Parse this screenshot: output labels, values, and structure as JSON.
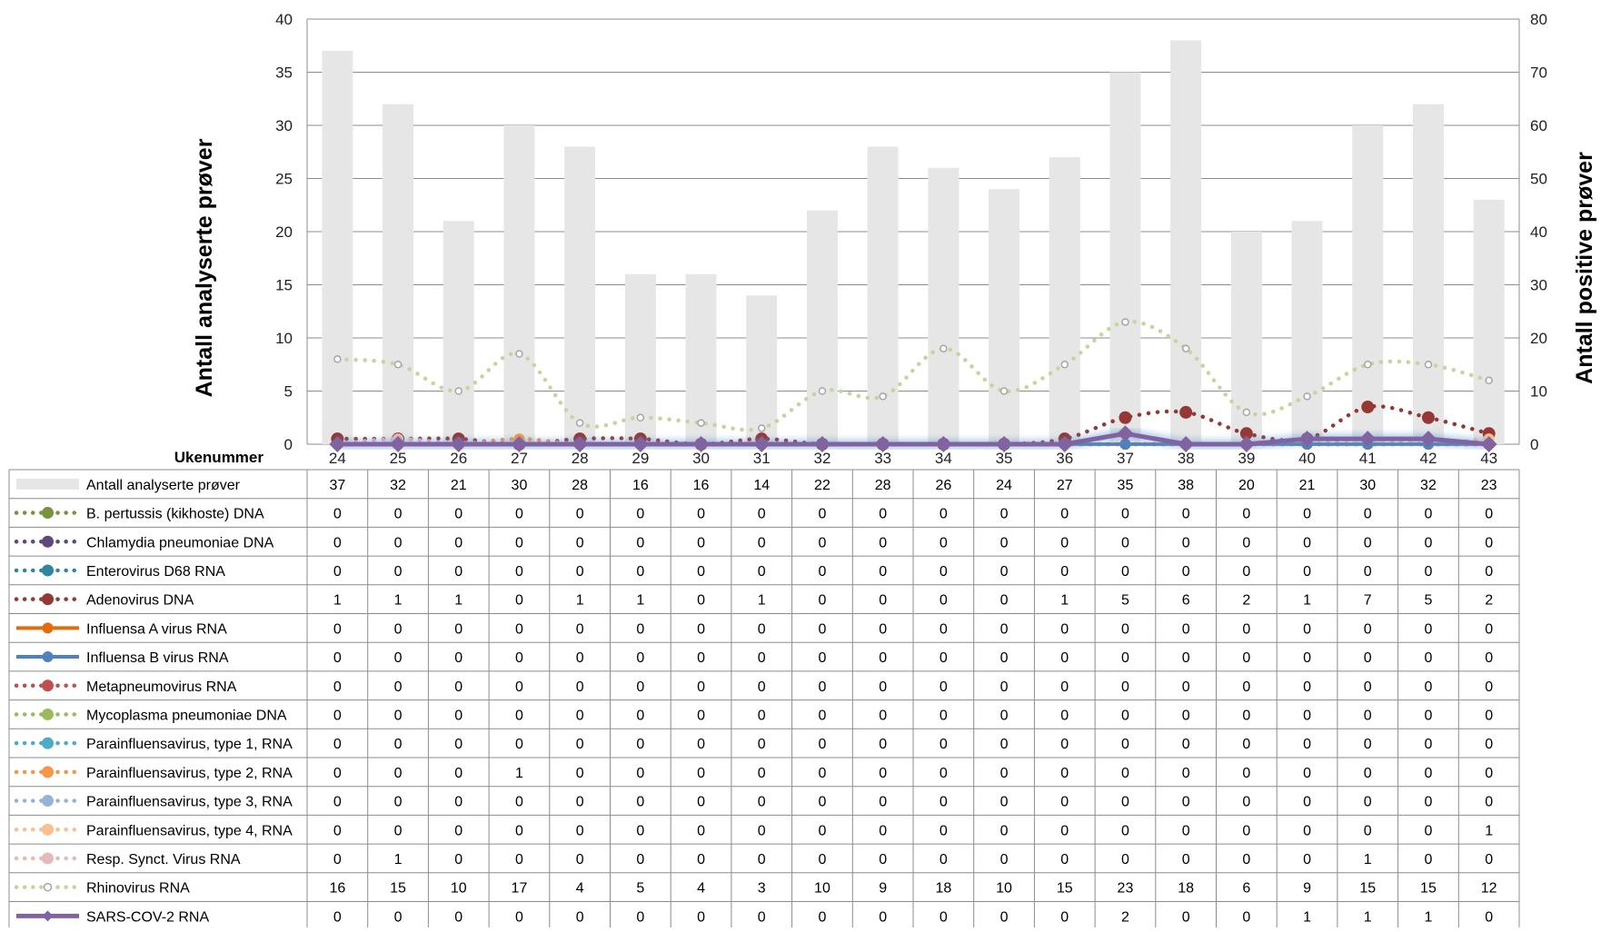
{
  "chart_data": {
    "type": "bar",
    "xlabel": "Ukenummer",
    "ylabel_left": "Antall analyserte prøver",
    "ylabel_right": "Antall positive prøver",
    "ylim_left": [
      0,
      40
    ],
    "ylim_right": [
      0,
      80
    ],
    "yticks_left": [
      0,
      5,
      10,
      15,
      20,
      25,
      30,
      35,
      40
    ],
    "yticks_right": [
      0,
      10,
      20,
      30,
      40,
      50,
      60,
      70,
      80
    ],
    "grid": true,
    "legend_placement": "data-table",
    "categories": [
      "24",
      "25",
      "26",
      "27",
      "28",
      "29",
      "30",
      "31",
      "32",
      "33",
      "34",
      "35",
      "36",
      "37",
      "38",
      "39",
      "40",
      "41",
      "42",
      "43"
    ],
    "series": [
      {
        "name": "Antall analyserte prøver",
        "kind": "bar",
        "axis": "left",
        "color": "#e6e6e6",
        "values": [
          37,
          32,
          21,
          30,
          28,
          16,
          16,
          14,
          22,
          28,
          26,
          24,
          27,
          35,
          38,
          20,
          21,
          30,
          32,
          23
        ]
      },
      {
        "name": "B. pertussis (kikhoste) DNA",
        "kind": "dotted",
        "axis": "right",
        "color": "#77933c",
        "values": [
          0,
          0,
          0,
          0,
          0,
          0,
          0,
          0,
          0,
          0,
          0,
          0,
          0,
          0,
          0,
          0,
          0,
          0,
          0,
          0
        ]
      },
      {
        "name": "Chlamydia pneumoniae DNA",
        "kind": "dotted",
        "axis": "right",
        "color": "#60497a",
        "values": [
          0,
          0,
          0,
          0,
          0,
          0,
          0,
          0,
          0,
          0,
          0,
          0,
          0,
          0,
          0,
          0,
          0,
          0,
          0,
          0
        ]
      },
      {
        "name": "Enterovirus D68 RNA",
        "kind": "dotted",
        "axis": "right",
        "color": "#31859c",
        "values": [
          0,
          0,
          0,
          0,
          0,
          0,
          0,
          0,
          0,
          0,
          0,
          0,
          0,
          0,
          0,
          0,
          0,
          0,
          0,
          0
        ]
      },
      {
        "name": "Adenovirus DNA",
        "kind": "dotted",
        "axis": "right",
        "color": "#953735",
        "values": [
          1,
          1,
          1,
          0,
          1,
          1,
          0,
          1,
          0,
          0,
          0,
          0,
          1,
          5,
          6,
          2,
          1,
          7,
          5,
          2
        ]
      },
      {
        "name": "Influensa A virus RNA",
        "kind": "solid",
        "axis": "right",
        "color": "#e46c0a",
        "values": [
          0,
          0,
          0,
          0,
          0,
          0,
          0,
          0,
          0,
          0,
          0,
          0,
          0,
          0,
          0,
          0,
          0,
          0,
          0,
          0
        ]
      },
      {
        "name": "Influensa B virus RNA",
        "kind": "solid",
        "axis": "right",
        "color": "#4f81bd",
        "values": [
          0,
          0,
          0,
          0,
          0,
          0,
          0,
          0,
          0,
          0,
          0,
          0,
          0,
          0,
          0,
          0,
          0,
          0,
          0,
          0
        ]
      },
      {
        "name": "Metapneumovirus RNA",
        "kind": "dotted",
        "axis": "right",
        "color": "#c0504d",
        "values": [
          0,
          0,
          0,
          0,
          0,
          0,
          0,
          0,
          0,
          0,
          0,
          0,
          0,
          0,
          0,
          0,
          0,
          0,
          0,
          0
        ]
      },
      {
        "name": "Mycoplasma pneumoniae DNA",
        "kind": "dotted",
        "axis": "right",
        "color": "#9bbb59",
        "values": [
          0,
          0,
          0,
          0,
          0,
          0,
          0,
          0,
          0,
          0,
          0,
          0,
          0,
          0,
          0,
          0,
          0,
          0,
          0,
          0
        ]
      },
      {
        "name": "Parainfluensavirus, type 1, RNA",
        "kind": "dotted",
        "axis": "right",
        "color": "#4bacc6",
        "values": [
          0,
          0,
          0,
          0,
          0,
          0,
          0,
          0,
          0,
          0,
          0,
          0,
          0,
          0,
          0,
          0,
          0,
          0,
          0,
          0
        ]
      },
      {
        "name": "Parainfluensavirus, type 2, RNA",
        "kind": "dotted",
        "axis": "right",
        "color": "#f79646",
        "values": [
          0,
          0,
          0,
          1,
          0,
          0,
          0,
          0,
          0,
          0,
          0,
          0,
          0,
          0,
          0,
          0,
          0,
          0,
          0,
          0
        ]
      },
      {
        "name": "Parainfluensavirus, type 3, RNA",
        "kind": "dotted",
        "axis": "right",
        "color": "#95b3d7",
        "values": [
          0,
          0,
          0,
          0,
          0,
          0,
          0,
          0,
          0,
          0,
          0,
          0,
          0,
          0,
          0,
          0,
          0,
          0,
          0,
          0
        ]
      },
      {
        "name": "Parainfluensavirus, type 4, RNA",
        "kind": "dotted",
        "axis": "right",
        "color": "#fac090",
        "values": [
          0,
          0,
          0,
          0,
          0,
          0,
          0,
          0,
          0,
          0,
          0,
          0,
          0,
          0,
          0,
          0,
          0,
          0,
          0,
          1
        ]
      },
      {
        "name": "Resp. Synct. Virus RNA",
        "kind": "dotted",
        "axis": "right",
        "color": "#e6b9b8",
        "values": [
          0,
          1,
          0,
          0,
          0,
          0,
          0,
          0,
          0,
          0,
          0,
          0,
          0,
          0,
          0,
          0,
          0,
          1,
          0,
          0
        ]
      },
      {
        "name": "Rhinovirus RNA",
        "kind": "dotted",
        "axis": "right",
        "color": "#c3d69b",
        "values": [
          16,
          15,
          10,
          17,
          4,
          5,
          4,
          3,
          10,
          9,
          18,
          10,
          15,
          23,
          18,
          6,
          9,
          15,
          15,
          12
        ]
      },
      {
        "name": "SARS-COV-2 RNA",
        "kind": "solid",
        "axis": "right",
        "color": "#8064a2",
        "values": [
          0,
          0,
          0,
          0,
          0,
          0,
          0,
          0,
          0,
          0,
          0,
          0,
          0,
          2,
          0,
          0,
          1,
          1,
          1,
          0
        ]
      }
    ]
  }
}
